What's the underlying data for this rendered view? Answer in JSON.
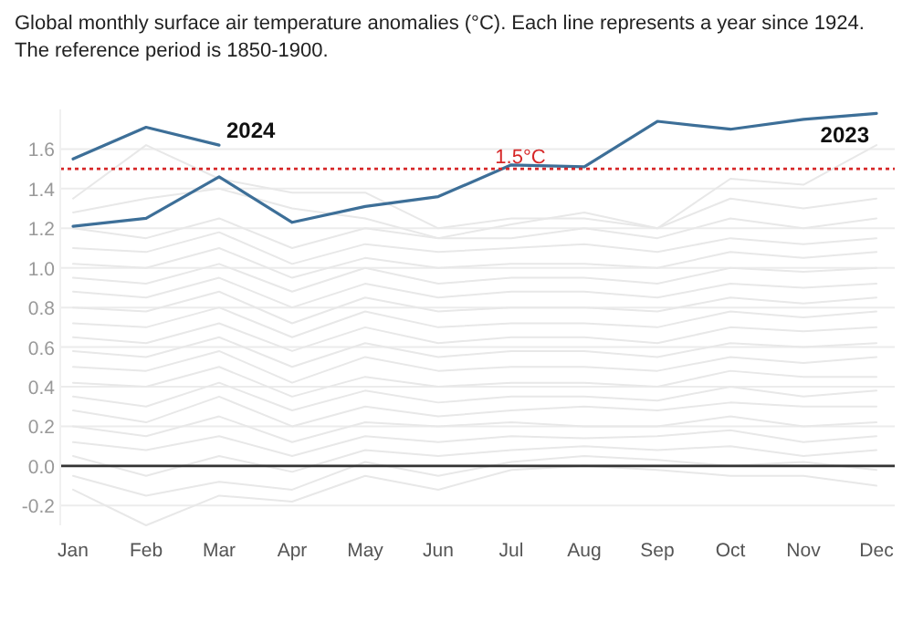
{
  "chart_data": {
    "type": "line",
    "title": "Global monthly surface air temperature anomalies (°C). Each line represents a year since 1924.",
    "subtitle": "The reference period is 1850-1900.",
    "categories": [
      "Jan",
      "Feb",
      "Mar",
      "Apr",
      "May",
      "Jun",
      "Jul",
      "Aug",
      "Sep",
      "Oct",
      "Nov",
      "Dec"
    ],
    "series": [
      {
        "color": "#e8e8e8",
        "values": [
          -0.12,
          -0.3,
          -0.15,
          -0.18,
          -0.05,
          -0.12,
          -0.02,
          0.0,
          -0.02,
          -0.05,
          -0.05,
          -0.1
        ]
      },
      {
        "color": "#e8e8e8",
        "values": [
          -0.05,
          -0.15,
          -0.08,
          -0.12,
          0.02,
          -0.05,
          0.02,
          0.05,
          0.03,
          0.0,
          0.02,
          -0.02
        ]
      },
      {
        "color": "#e8e8e8",
        "values": [
          0.05,
          -0.05,
          0.05,
          -0.03,
          0.08,
          0.05,
          0.08,
          0.1,
          0.08,
          0.1,
          0.05,
          0.08
        ]
      },
      {
        "color": "#e8e8e8",
        "values": [
          0.12,
          0.08,
          0.15,
          0.05,
          0.15,
          0.12,
          0.15,
          0.14,
          0.15,
          0.18,
          0.12,
          0.15
        ]
      },
      {
        "color": "#e8e8e8",
        "values": [
          0.2,
          0.15,
          0.25,
          0.12,
          0.22,
          0.2,
          0.22,
          0.2,
          0.2,
          0.25,
          0.2,
          0.22
        ]
      },
      {
        "color": "#e8e8e8",
        "values": [
          0.28,
          0.22,
          0.35,
          0.2,
          0.3,
          0.25,
          0.28,
          0.3,
          0.28,
          0.32,
          0.3,
          0.3
        ]
      },
      {
        "color": "#e8e8e8",
        "values": [
          0.35,
          0.3,
          0.42,
          0.28,
          0.38,
          0.32,
          0.35,
          0.35,
          0.33,
          0.4,
          0.35,
          0.38
        ]
      },
      {
        "color": "#e8e8e8",
        "values": [
          0.42,
          0.4,
          0.5,
          0.35,
          0.45,
          0.4,
          0.42,
          0.42,
          0.4,
          0.48,
          0.45,
          0.45
        ]
      },
      {
        "color": "#e8e8e8",
        "values": [
          0.5,
          0.48,
          0.58,
          0.42,
          0.55,
          0.48,
          0.5,
          0.5,
          0.48,
          0.55,
          0.52,
          0.55
        ]
      },
      {
        "color": "#e8e8e8",
        "values": [
          0.58,
          0.55,
          0.65,
          0.5,
          0.62,
          0.55,
          0.58,
          0.58,
          0.55,
          0.62,
          0.6,
          0.62
        ]
      },
      {
        "color": "#e8e8e8",
        "values": [
          0.65,
          0.62,
          0.72,
          0.58,
          0.7,
          0.62,
          0.65,
          0.65,
          0.62,
          0.7,
          0.68,
          0.7
        ]
      },
      {
        "color": "#e8e8e8",
        "values": [
          0.72,
          0.7,
          0.8,
          0.65,
          0.78,
          0.7,
          0.72,
          0.72,
          0.7,
          0.78,
          0.75,
          0.78
        ]
      },
      {
        "color": "#e8e8e8",
        "values": [
          0.8,
          0.78,
          0.88,
          0.72,
          0.85,
          0.78,
          0.8,
          0.8,
          0.78,
          0.85,
          0.82,
          0.85
        ]
      },
      {
        "color": "#e8e8e8",
        "values": [
          0.88,
          0.85,
          0.95,
          0.8,
          0.92,
          0.85,
          0.88,
          0.88,
          0.85,
          0.92,
          0.9,
          0.92
        ]
      },
      {
        "color": "#e8e8e8",
        "values": [
          0.95,
          0.92,
          1.02,
          0.88,
          1.0,
          0.92,
          0.95,
          0.95,
          0.92,
          1.0,
          0.98,
          1.0
        ]
      },
      {
        "color": "#e8e8e8",
        "values": [
          1.02,
          1.0,
          1.1,
          0.95,
          1.05,
          1.0,
          1.02,
          1.02,
          1.0,
          1.08,
          1.05,
          1.08
        ]
      },
      {
        "color": "#e8e8e8",
        "values": [
          1.1,
          1.08,
          1.18,
          1.02,
          1.12,
          1.08,
          1.1,
          1.12,
          1.08,
          1.15,
          1.12,
          1.15
        ]
      },
      {
        "color": "#e8e8e8",
        "values": [
          1.2,
          1.15,
          1.25,
          1.1,
          1.2,
          1.15,
          1.15,
          1.2,
          1.15,
          1.25,
          1.2,
          1.25
        ]
      },
      {
        "color": "#e8e8e8",
        "values": [
          1.28,
          1.35,
          1.4,
          1.3,
          1.25,
          1.15,
          1.22,
          1.28,
          1.2,
          1.35,
          1.3,
          1.35
        ]
      },
      {
        "color": "#e8e8e8",
        "values": [
          1.35,
          1.62,
          1.45,
          1.38,
          1.38,
          1.2,
          1.25,
          1.25,
          1.2,
          1.45,
          1.42,
          1.62
        ]
      },
      {
        "name": "2023",
        "color": "#3d6f98",
        "values": [
          1.21,
          1.25,
          1.46,
          1.23,
          1.31,
          1.36,
          1.52,
          1.51,
          1.74,
          1.7,
          1.75,
          1.78
        ]
      },
      {
        "name": "2024",
        "color": "#3d6f98",
        "values": [
          1.55,
          1.71,
          1.62,
          null,
          null,
          null,
          null,
          null,
          null,
          null,
          null,
          null
        ]
      }
    ],
    "ylim": [
      -0.3,
      1.8
    ],
    "yticks": [
      {
        "value": -0.2,
        "label": "-0.2"
      },
      {
        "value": 0,
        "label": "0.0"
      },
      {
        "value": 0.2,
        "label": "0.2"
      },
      {
        "value": 0.4,
        "label": "0.4"
      },
      {
        "value": 0.6,
        "label": "0.6"
      },
      {
        "value": 0.8,
        "label": "0.8"
      },
      {
        "value": 1,
        "label": "1.0"
      },
      {
        "value": 1.2,
        "label": "1.2"
      },
      {
        "value": 1.4,
        "label": "1.4"
      },
      {
        "value": 1.6,
        "label": "1.6"
      }
    ],
    "grid": "y",
    "marker": "none",
    "line_style": "solid",
    "ref_lines": [
      {
        "axis": "y",
        "value": 0,
        "label": null,
        "color": "#333333",
        "line_style": "solid"
      },
      {
        "axis": "y",
        "value": 1.5,
        "label": "1.5°C",
        "color": "#d62728",
        "line_style": "dotted"
      }
    ]
  }
}
